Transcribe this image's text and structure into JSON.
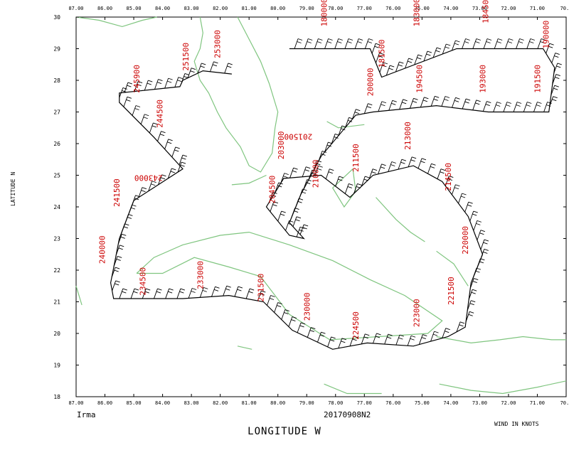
{
  "map": {
    "lon_range": [
      70.0,
      87.0
    ],
    "lat_range": [
      18.0,
      30.0
    ],
    "lon_ticks": [
      "87.00",
      "86.00",
      "85.00",
      "84.00",
      "83.00",
      "82.00",
      "81.00",
      "80.00",
      "79.00",
      "78.00",
      "77.00",
      "76.00",
      "75.00",
      "74.00",
      "73.00",
      "72.00",
      "71.00",
      "70.0"
    ],
    "lat_ticks": [
      "18",
      "19",
      "20",
      "21",
      "22",
      "23",
      "24",
      "25",
      "26",
      "27",
      "28",
      "29",
      "30"
    ],
    "colors": {
      "coast": "#7fc57f",
      "track": "#000000",
      "label": "#cc0000",
      "frame": "#000000"
    }
  },
  "labels": {
    "storm": "Irma",
    "date": "20170908N2",
    "x_title": "LONGITUDE   W",
    "y_title": "LATITUDE  N",
    "units": "WIND IN KNOTS"
  },
  "track": {
    "points": [
      [
        79.6,
        29.0
      ],
      [
        76.8,
        29.0
      ],
      [
        76.4,
        28.1
      ],
      [
        73.8,
        29.0
      ],
      [
        70.8,
        29.0
      ],
      [
        70.4,
        28.4
      ],
      [
        70.6,
        27.0
      ],
      [
        72.7,
        27.0
      ],
      [
        74.5,
        27.2
      ],
      [
        76.7,
        27.0
      ],
      [
        77.3,
        26.9
      ],
      [
        78.5,
        25.6
      ],
      [
        79.2,
        24.4
      ],
      [
        79.6,
        23.5
      ],
      [
        79.1,
        23.0
      ],
      [
        79.6,
        23.1
      ],
      [
        80.4,
        24.0
      ],
      [
        79.8,
        24.9
      ],
      [
        78.5,
        25.0
      ],
      [
        77.5,
        24.3
      ],
      [
        76.7,
        25.0
      ],
      [
        75.3,
        25.3
      ],
      [
        74.3,
        24.8
      ],
      [
        73.4,
        23.7
      ],
      [
        72.9,
        22.5
      ],
      [
        73.3,
        21.6
      ],
      [
        73.5,
        20.2
      ],
      [
        74.1,
        19.9
      ],
      [
        75.3,
        19.6
      ],
      [
        76.9,
        19.7
      ],
      [
        78.1,
        19.5
      ],
      [
        79.5,
        20.1
      ],
      [
        80.5,
        21.0
      ],
      [
        81.7,
        21.2
      ],
      [
        83.3,
        21.1
      ],
      [
        85.7,
        21.1
      ],
      [
        85.8,
        21.6
      ],
      [
        85.5,
        23.0
      ],
      [
        85.0,
        24.2
      ],
      [
        83.3,
        25.2
      ],
      [
        84.3,
        26.2
      ],
      [
        85.5,
        27.3
      ],
      [
        85.5,
        27.6
      ],
      [
        83.4,
        27.8
      ],
      [
        83.3,
        28.0
      ],
      [
        82.6,
        28.3
      ],
      [
        81.6,
        28.2
      ]
    ],
    "annotations": [
      {
        "text": "180000",
        "lon": 78.3,
        "lat": 29.7,
        "rot": -90
      },
      {
        "text": "181500",
        "lon": 76.3,
        "lat": 28.4,
        "rot": -90
      },
      {
        "text": "183000",
        "lon": 75.1,
        "lat": 29.7,
        "rot": -90
      },
      {
        "text": "184500",
        "lon": 72.7,
        "lat": 29.8,
        "rot": -90
      },
      {
        "text": "190000",
        "lon": 70.6,
        "lat": 29.0,
        "rot": -90
      },
      {
        "text": "191500",
        "lon": 70.9,
        "lat": 27.6,
        "rot": -90
      },
      {
        "text": "193000",
        "lon": 72.8,
        "lat": 27.6,
        "rot": -90
      },
      {
        "text": "194500",
        "lon": 75.0,
        "lat": 27.6,
        "rot": -90
      },
      {
        "text": "200000",
        "lon": 76.7,
        "lat": 27.5,
        "rot": -90
      },
      {
        "text": "201500",
        "lon": 78.8,
        "lat": 26.3,
        "rot": 180
      },
      {
        "text": "203000",
        "lon": 79.8,
        "lat": 25.5,
        "rot": -90
      },
      {
        "text": "204500",
        "lon": 80.1,
        "lat": 24.1,
        "rot": -90
      },
      {
        "text": "210000",
        "lon": 78.6,
        "lat": 24.6,
        "rot": -90
      },
      {
        "text": "211500",
        "lon": 77.2,
        "lat": 25.1,
        "rot": -90
      },
      {
        "text": "213000",
        "lon": 75.4,
        "lat": 25.8,
        "rot": -90
      },
      {
        "text": "214500",
        "lon": 74.0,
        "lat": 24.5,
        "rot": -90
      },
      {
        "text": "220000",
        "lon": 73.4,
        "lat": 22.5,
        "rot": -90
      },
      {
        "text": "221500",
        "lon": 73.9,
        "lat": 20.9,
        "rot": -90
      },
      {
        "text": "223000",
        "lon": 75.1,
        "lat": 20.2,
        "rot": -90
      },
      {
        "text": "224500",
        "lon": 77.2,
        "lat": 19.8,
        "rot": -90
      },
      {
        "text": "230000",
        "lon": 78.9,
        "lat": 20.4,
        "rot": -90
      },
      {
        "text": "231500",
        "lon": 80.5,
        "lat": 21.0,
        "rot": -90
      },
      {
        "text": "233000",
        "lon": 82.6,
        "lat": 21.4,
        "rot": -90
      },
      {
        "text": "234500",
        "lon": 84.6,
        "lat": 21.2,
        "rot": -90
      },
      {
        "text": "240000",
        "lon": 86.0,
        "lat": 22.2,
        "rot": -90
      },
      {
        "text": "241500",
        "lon": 85.5,
        "lat": 24.0,
        "rot": -90
      },
      {
        "text": "243000",
        "lon": 84.0,
        "lat": 25.0,
        "rot": 180
      },
      {
        "text": "244500",
        "lon": 84.0,
        "lat": 26.5,
        "rot": -90
      },
      {
        "text": "245900",
        "lon": 84.8,
        "lat": 27.6,
        "rot": -90
      },
      {
        "text": "251500",
        "lon": 83.1,
        "lat": 28.3,
        "rot": -90
      },
      {
        "text": "253000",
        "lon": 82.0,
        "lat": 28.7,
        "rot": -90
      }
    ]
  },
  "coastlines": [
    [
      [
        82.7,
        30.0
      ],
      [
        82.6,
        29.5
      ],
      [
        82.7,
        29.0
      ],
      [
        82.9,
        28.6
      ],
      [
        82.7,
        28.0
      ],
      [
        82.4,
        27.6
      ],
      [
        82.1,
        27.0
      ],
      [
        81.8,
        26.5
      ],
      [
        81.3,
        25.9
      ],
      [
        81.0,
        25.3
      ],
      [
        80.6,
        25.1
      ],
      [
        80.2,
        25.7
      ],
      [
        80.1,
        26.5
      ],
      [
        80.0,
        27.0
      ],
      [
        80.3,
        27.9
      ],
      [
        80.6,
        28.6
      ],
      [
        81.0,
        29.3
      ],
      [
        81.4,
        30.0
      ]
    ],
    [
      [
        87.0,
        30.0
      ],
      [
        86.2,
        29.9
      ],
      [
        85.4,
        29.7
      ],
      [
        84.7,
        29.9
      ],
      [
        84.2,
        30.0
      ]
    ],
    [
      [
        81.6,
        24.7
      ],
      [
        81.0,
        24.75
      ],
      [
        80.4,
        25.0
      ]
    ],
    [
      [
        84.9,
        21.9
      ],
      [
        84.3,
        22.4
      ],
      [
        83.3,
        22.8
      ],
      [
        82.0,
        23.1
      ],
      [
        81.0,
        23.2
      ],
      [
        79.6,
        22.8
      ],
      [
        78.1,
        22.3
      ],
      [
        76.8,
        21.7
      ],
      [
        75.6,
        21.2
      ],
      [
        74.3,
        20.4
      ],
      [
        74.8,
        20.0
      ],
      [
        76.5,
        19.9
      ],
      [
        78.2,
        19.8
      ],
      [
        79.6,
        20.6
      ],
      [
        80.6,
        21.8
      ],
      [
        81.7,
        22.1
      ],
      [
        82.9,
        22.4
      ],
      [
        84.0,
        21.9
      ],
      [
        84.9,
        21.9
      ]
    ],
    [
      [
        78.3,
        26.7
      ],
      [
        77.9,
        26.5
      ],
      [
        77.0,
        26.6
      ]
    ],
    [
      [
        77.4,
        25.2
      ],
      [
        77.3,
        24.5
      ],
      [
        77.7,
        24.0
      ],
      [
        78.1,
        24.6
      ],
      [
        77.4,
        25.2
      ]
    ],
    [
      [
        76.6,
        24.3
      ],
      [
        75.9,
        23.6
      ],
      [
        75.4,
        23.2
      ],
      [
        74.9,
        22.9
      ]
    ],
    [
      [
        74.5,
        22.6
      ],
      [
        73.9,
        22.2
      ],
      [
        73.4,
        21.5
      ]
    ],
    [
      [
        74.5,
        19.9
      ],
      [
        73.3,
        19.7
      ],
      [
        72.3,
        19.8
      ],
      [
        71.5,
        19.9
      ],
      [
        70.5,
        19.8
      ],
      [
        70.0,
        19.8
      ]
    ],
    [
      [
        74.4,
        18.4
      ],
      [
        73.3,
        18.2
      ],
      [
        72.2,
        18.1
      ],
      [
        71.0,
        18.3
      ],
      [
        70.0,
        18.5
      ]
    ],
    [
      [
        78.4,
        18.4
      ],
      [
        77.6,
        18.1
      ],
      [
        76.4,
        18.1
      ]
    ],
    [
      [
        81.4,
        19.6
      ],
      [
        80.9,
        19.5
      ]
    ],
    [
      [
        87.0,
        21.5
      ],
      [
        86.8,
        20.9
      ]
    ]
  ]
}
